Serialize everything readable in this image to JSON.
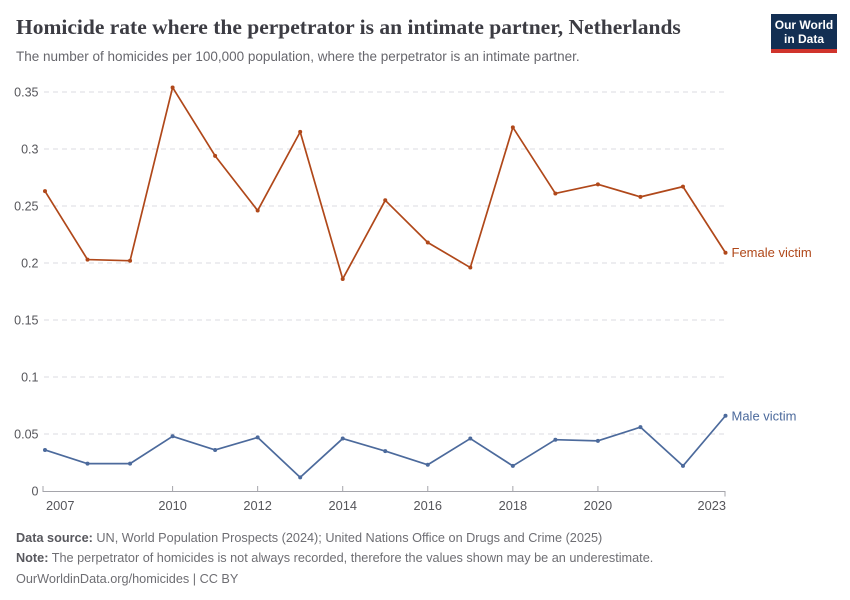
{
  "header": {
    "logo": {
      "line1": "Our World",
      "line2": "in Data",
      "bg_color": "#132F53",
      "accent_color": "#D0342C"
    }
  },
  "chart_data": {
    "type": "line",
    "title": "Homicide rate where the perpetrator is an intimate partner, Netherlands",
    "subtitle": "The number of homicides per 100,000 population, where the perpetrator is an intimate partner.",
    "x": [
      2007,
      2008,
      2009,
      2010,
      2011,
      2012,
      2013,
      2014,
      2015,
      2016,
      2017,
      2018,
      2019,
      2020,
      2021,
      2022,
      2023
    ],
    "series": [
      {
        "name": "Female victim",
        "color": "#B0481A",
        "values": [
          0.263,
          0.203,
          0.202,
          0.354,
          0.294,
          0.246,
          0.315,
          0.186,
          0.255,
          0.218,
          0.196,
          0.319,
          0.261,
          0.269,
          0.258,
          0.267,
          0.209
        ]
      },
      {
        "name": "Male victim",
        "color": "#4C6A9C",
        "values": [
          0.036,
          0.024,
          0.024,
          0.048,
          0.036,
          0.047,
          0.012,
          0.046,
          0.035,
          0.023,
          0.046,
          0.022,
          0.045,
          0.044,
          0.056,
          0.022,
          0.066
        ]
      }
    ],
    "ylim": [
      0,
      0.35
    ],
    "yticks": [
      0,
      0.05,
      0.1,
      0.15,
      0.2,
      0.25,
      0.3,
      0.35
    ],
    "ytick_labels": [
      "0",
      "0.05",
      "0.1",
      "0.15",
      "0.2",
      "0.25",
      "0.3",
      "0.35"
    ],
    "xticks": [
      2007,
      2010,
      2012,
      2014,
      2016,
      2018,
      2020,
      2023
    ],
    "grid": "horizontal-dashed",
    "legend_position": "end-of-line-labels"
  },
  "footer": {
    "source_label": "Data source:",
    "source_text": " UN, World Population Prospects (2024); United Nations Office on Drugs and Crime (2025)",
    "note_label": "Note:",
    "note_text": " The perpetrator of homicides is not always recorded, therefore the values shown may be an underestimate.",
    "url": "OurWorldinData.org/homicides | CC BY"
  }
}
